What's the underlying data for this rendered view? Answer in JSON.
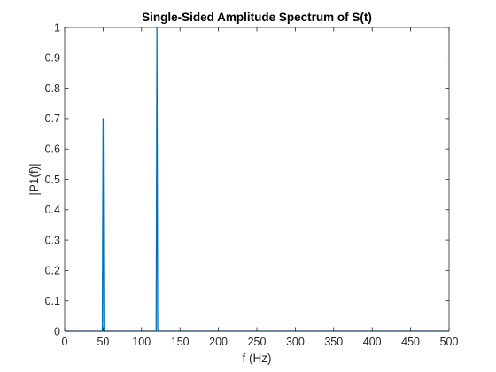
{
  "chart_data": {
    "type": "line",
    "title": "Single-Sided Amplitude Spectrum of S(t)",
    "xlabel": "f (Hz)",
    "ylabel": "|P1(f)|",
    "xlim": [
      0,
      500
    ],
    "ylim": [
      0,
      1
    ],
    "xticks": [
      0,
      50,
      100,
      150,
      200,
      250,
      300,
      350,
      400,
      450,
      500
    ],
    "xtick_labels": [
      "0",
      "50",
      "100",
      "150",
      "200",
      "250",
      "300",
      "350",
      "400",
      "450",
      "500"
    ],
    "yticks": [
      0,
      0.1,
      0.2,
      0.3,
      0.4,
      0.5,
      0.6,
      0.7,
      0.8,
      0.9,
      1
    ],
    "ytick_labels": [
      "0",
      "0.1",
      "0.2",
      "0.3",
      "0.4",
      "0.5",
      "0.6",
      "0.7",
      "0.8",
      "0.9",
      "1"
    ],
    "grid": false,
    "series": [
      {
        "color": "#0072bd",
        "x": [
          0,
          49,
          50,
          51,
          119,
          120,
          121,
          500
        ],
        "y": [
          0,
          0,
          0.7,
          0,
          0,
          1,
          0,
          0
        ]
      }
    ]
  }
}
